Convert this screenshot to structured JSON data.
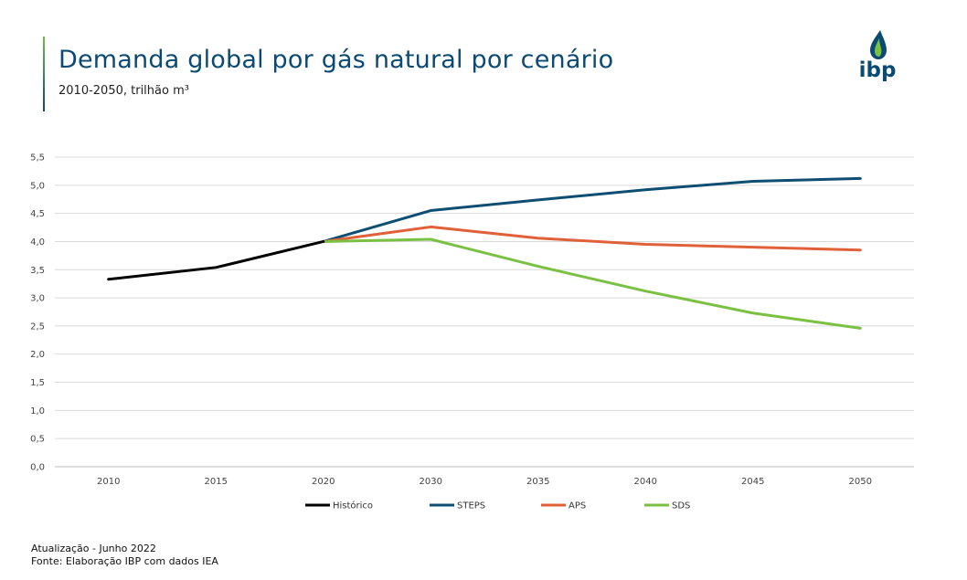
{
  "header": {
    "title": "Demanda global por gás natural por cenário",
    "subtitle": "2010-2050, trilhão m³"
  },
  "logo": {
    "text": "ibp",
    "icon": "drop-flame-icon"
  },
  "colors": {
    "accent": "#6cbf4a",
    "title": "#0b4a72",
    "grid": "#d9d9d9"
  },
  "chart_data": {
    "type": "line",
    "title": "Demanda global por gás natural por cenário",
    "xlabel": "",
    "ylabel": "trilhão m³",
    "categories": [
      "2010",
      "2015",
      "2020",
      "2030",
      "2035",
      "2040",
      "2045",
      "2050"
    ],
    "ylim": [
      0,
      5.5
    ],
    "yticks": [
      0,
      0.5,
      1,
      1.5,
      2,
      2.5,
      3,
      3.5,
      4,
      4.5,
      5,
      5.5
    ],
    "ytick_labels": [
      "0,0",
      "0,5",
      "1,0",
      "1,5",
      "2,0",
      "2,5",
      "3,0",
      "3,5",
      "4,0",
      "4,5",
      "5,0",
      "5,5"
    ],
    "grid": true,
    "legend_position": "bottom",
    "series": [
      {
        "name": "Histórico",
        "color": "#000000",
        "values": [
          3.33,
          3.54,
          4.0,
          null,
          null,
          null,
          null,
          null
        ]
      },
      {
        "name": "STEPS",
        "color": "#0f4e73",
        "values": [
          null,
          null,
          4.0,
          4.55,
          4.74,
          4.92,
          5.07,
          5.12
        ]
      },
      {
        "name": "APS",
        "color": "#e0603a",
        "values": [
          null,
          null,
          4.0,
          4.26,
          4.06,
          3.95,
          3.9,
          3.85
        ]
      },
      {
        "name": "SDS",
        "color": "#7ac143",
        "values": [
          null,
          null,
          4.0,
          4.04,
          3.56,
          3.12,
          2.73,
          2.46
        ]
      }
    ]
  },
  "footer": {
    "update": "Atualização - Junho 2022",
    "source": "Fonte: Elaboração IBP com dados IEA"
  }
}
